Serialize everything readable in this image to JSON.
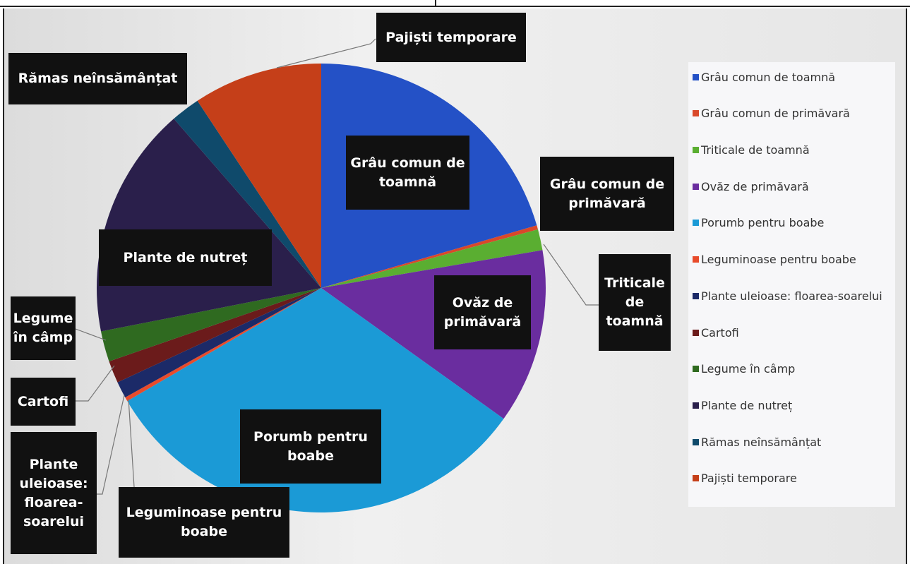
{
  "chart_data": {
    "type": "pie",
    "categories": [
      "Grâu comun de toamnă",
      "Grâu comun de primăvară",
      "Triticale de toamnă",
      "Ovăz de primăvară",
      "Porumb pentru boabe",
      "Leguminoase pentru boabe",
      "Plante uleioase: floarea-soarelui",
      "Cartofi",
      "Legume în câmp",
      "Plante de nutreț",
      "Rămas neînsămânțat",
      "Pajiști temporare"
    ],
    "values": [
      20.5,
      0.3,
      1.5,
      12.6,
      31.7,
      0.3,
      1.2,
      1.6,
      2.2,
      16.7,
      2.1,
      9.3
    ],
    "colors": [
      "#2451c6",
      "#d9482a",
      "#5aae31",
      "#6a2d9f",
      "#1b9ad6",
      "#e84b2b",
      "#1c2a68",
      "#6b1b1b",
      "#2f6a20",
      "#2a1f4b",
      "#0f4a6b",
      "#c53f19"
    ],
    "legend": "right"
  }
}
